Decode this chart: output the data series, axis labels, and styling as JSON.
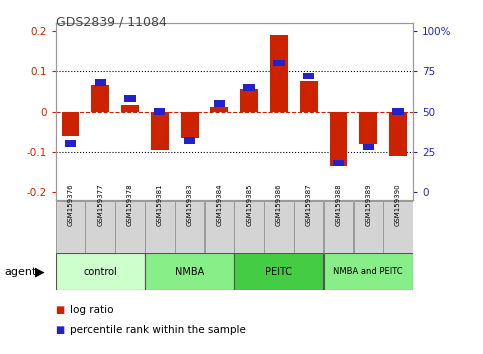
{
  "title": "GDS2839 / 11084",
  "samples": [
    "GSM159376",
    "GSM159377",
    "GSM159378",
    "GSM159381",
    "GSM159383",
    "GSM159384",
    "GSM159385",
    "GSM159386",
    "GSM159387",
    "GSM159388",
    "GSM159389",
    "GSM159390"
  ],
  "log_ratio": [
    -0.06,
    0.065,
    0.015,
    -0.095,
    -0.065,
    0.01,
    0.055,
    0.19,
    0.075,
    -0.135,
    -0.08,
    -0.11
  ],
  "percentile_rank": [
    30,
    68,
    58,
    50,
    32,
    55,
    65,
    80,
    72,
    18,
    28,
    50
  ],
  "group_colors": [
    "#ccffcc",
    "#88ee88",
    "#44cc44",
    "#88ee88"
  ],
  "group_labels": [
    "control",
    "NMBA",
    "PEITC",
    "NMBA and PEITC"
  ],
  "group_ranges": [
    [
      0,
      3
    ],
    [
      3,
      6
    ],
    [
      6,
      9
    ],
    [
      9,
      12
    ]
  ],
  "ylim": [
    -0.22,
    0.22
  ],
  "y_left_ticks": [
    -0.2,
    -0.1,
    0.0,
    0.1,
    0.2
  ],
  "y_right_ticks": [
    0,
    25,
    50,
    75,
    100
  ],
  "bar_color_red": "#cc2200",
  "bar_color_blue": "#2222cc",
  "title_color": "#444444",
  "agent_label": "agent",
  "legend_red": "log ratio",
  "legend_blue": "percentile rank within the sample"
}
